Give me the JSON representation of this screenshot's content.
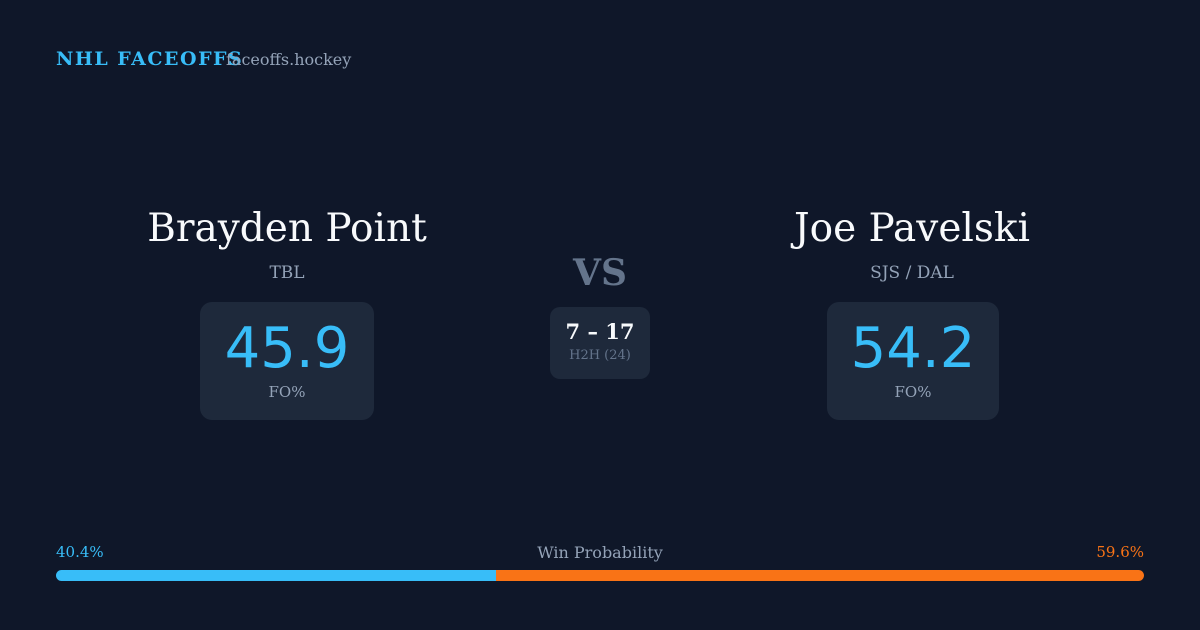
{
  "header": {
    "title": "NHL FACEOFFS",
    "site": "faceoffs.hockey"
  },
  "players": [
    {
      "name": "Brayden Point",
      "team": "TBL",
      "fo_pct": "45.9",
      "fo_label": "FO%"
    },
    {
      "name": "Joe Pavelski",
      "team": "SJS / DAL",
      "fo_pct": "54.2",
      "fo_label": "FO%"
    }
  ],
  "vs": "VS",
  "h2h": {
    "score": "7 – 17",
    "label": "H2H (24)"
  },
  "win_probability": {
    "title": "Win Probability",
    "left": {
      "value": 40.4,
      "label": "40.4%",
      "color": "#38bdf8"
    },
    "right": {
      "value": 59.6,
      "label": "59.6%",
      "color": "#f97316"
    }
  }
}
